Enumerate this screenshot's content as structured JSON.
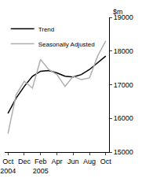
{
  "chart_data": {
    "type": "line",
    "y_label": "$m",
    "categories": [
      "Oct 2004",
      null,
      "Dec",
      null,
      "Feb 2005",
      null,
      "Apr",
      null,
      "Jun",
      null,
      "Aug",
      null,
      "Oct"
    ],
    "series": [
      {
        "name": "Trend",
        "color": "#000000",
        "values": [
          16150,
          16600,
          16950,
          17250,
          17400,
          17420,
          17350,
          17250,
          17230,
          17300,
          17450,
          17650,
          17850
        ]
      },
      {
        "name": "Seasonally Adjusted",
        "color": "#b0b0b0",
        "values": [
          15550,
          16700,
          17100,
          16900,
          17750,
          17450,
          17300,
          16950,
          17250,
          17150,
          17200,
          17850,
          18300
        ]
      }
    ],
    "ylim": [
      15000,
      19000
    ],
    "yticks": [
      15000,
      16000,
      17000,
      18000,
      19000
    ],
    "grid": false,
    "legend": "top left"
  }
}
